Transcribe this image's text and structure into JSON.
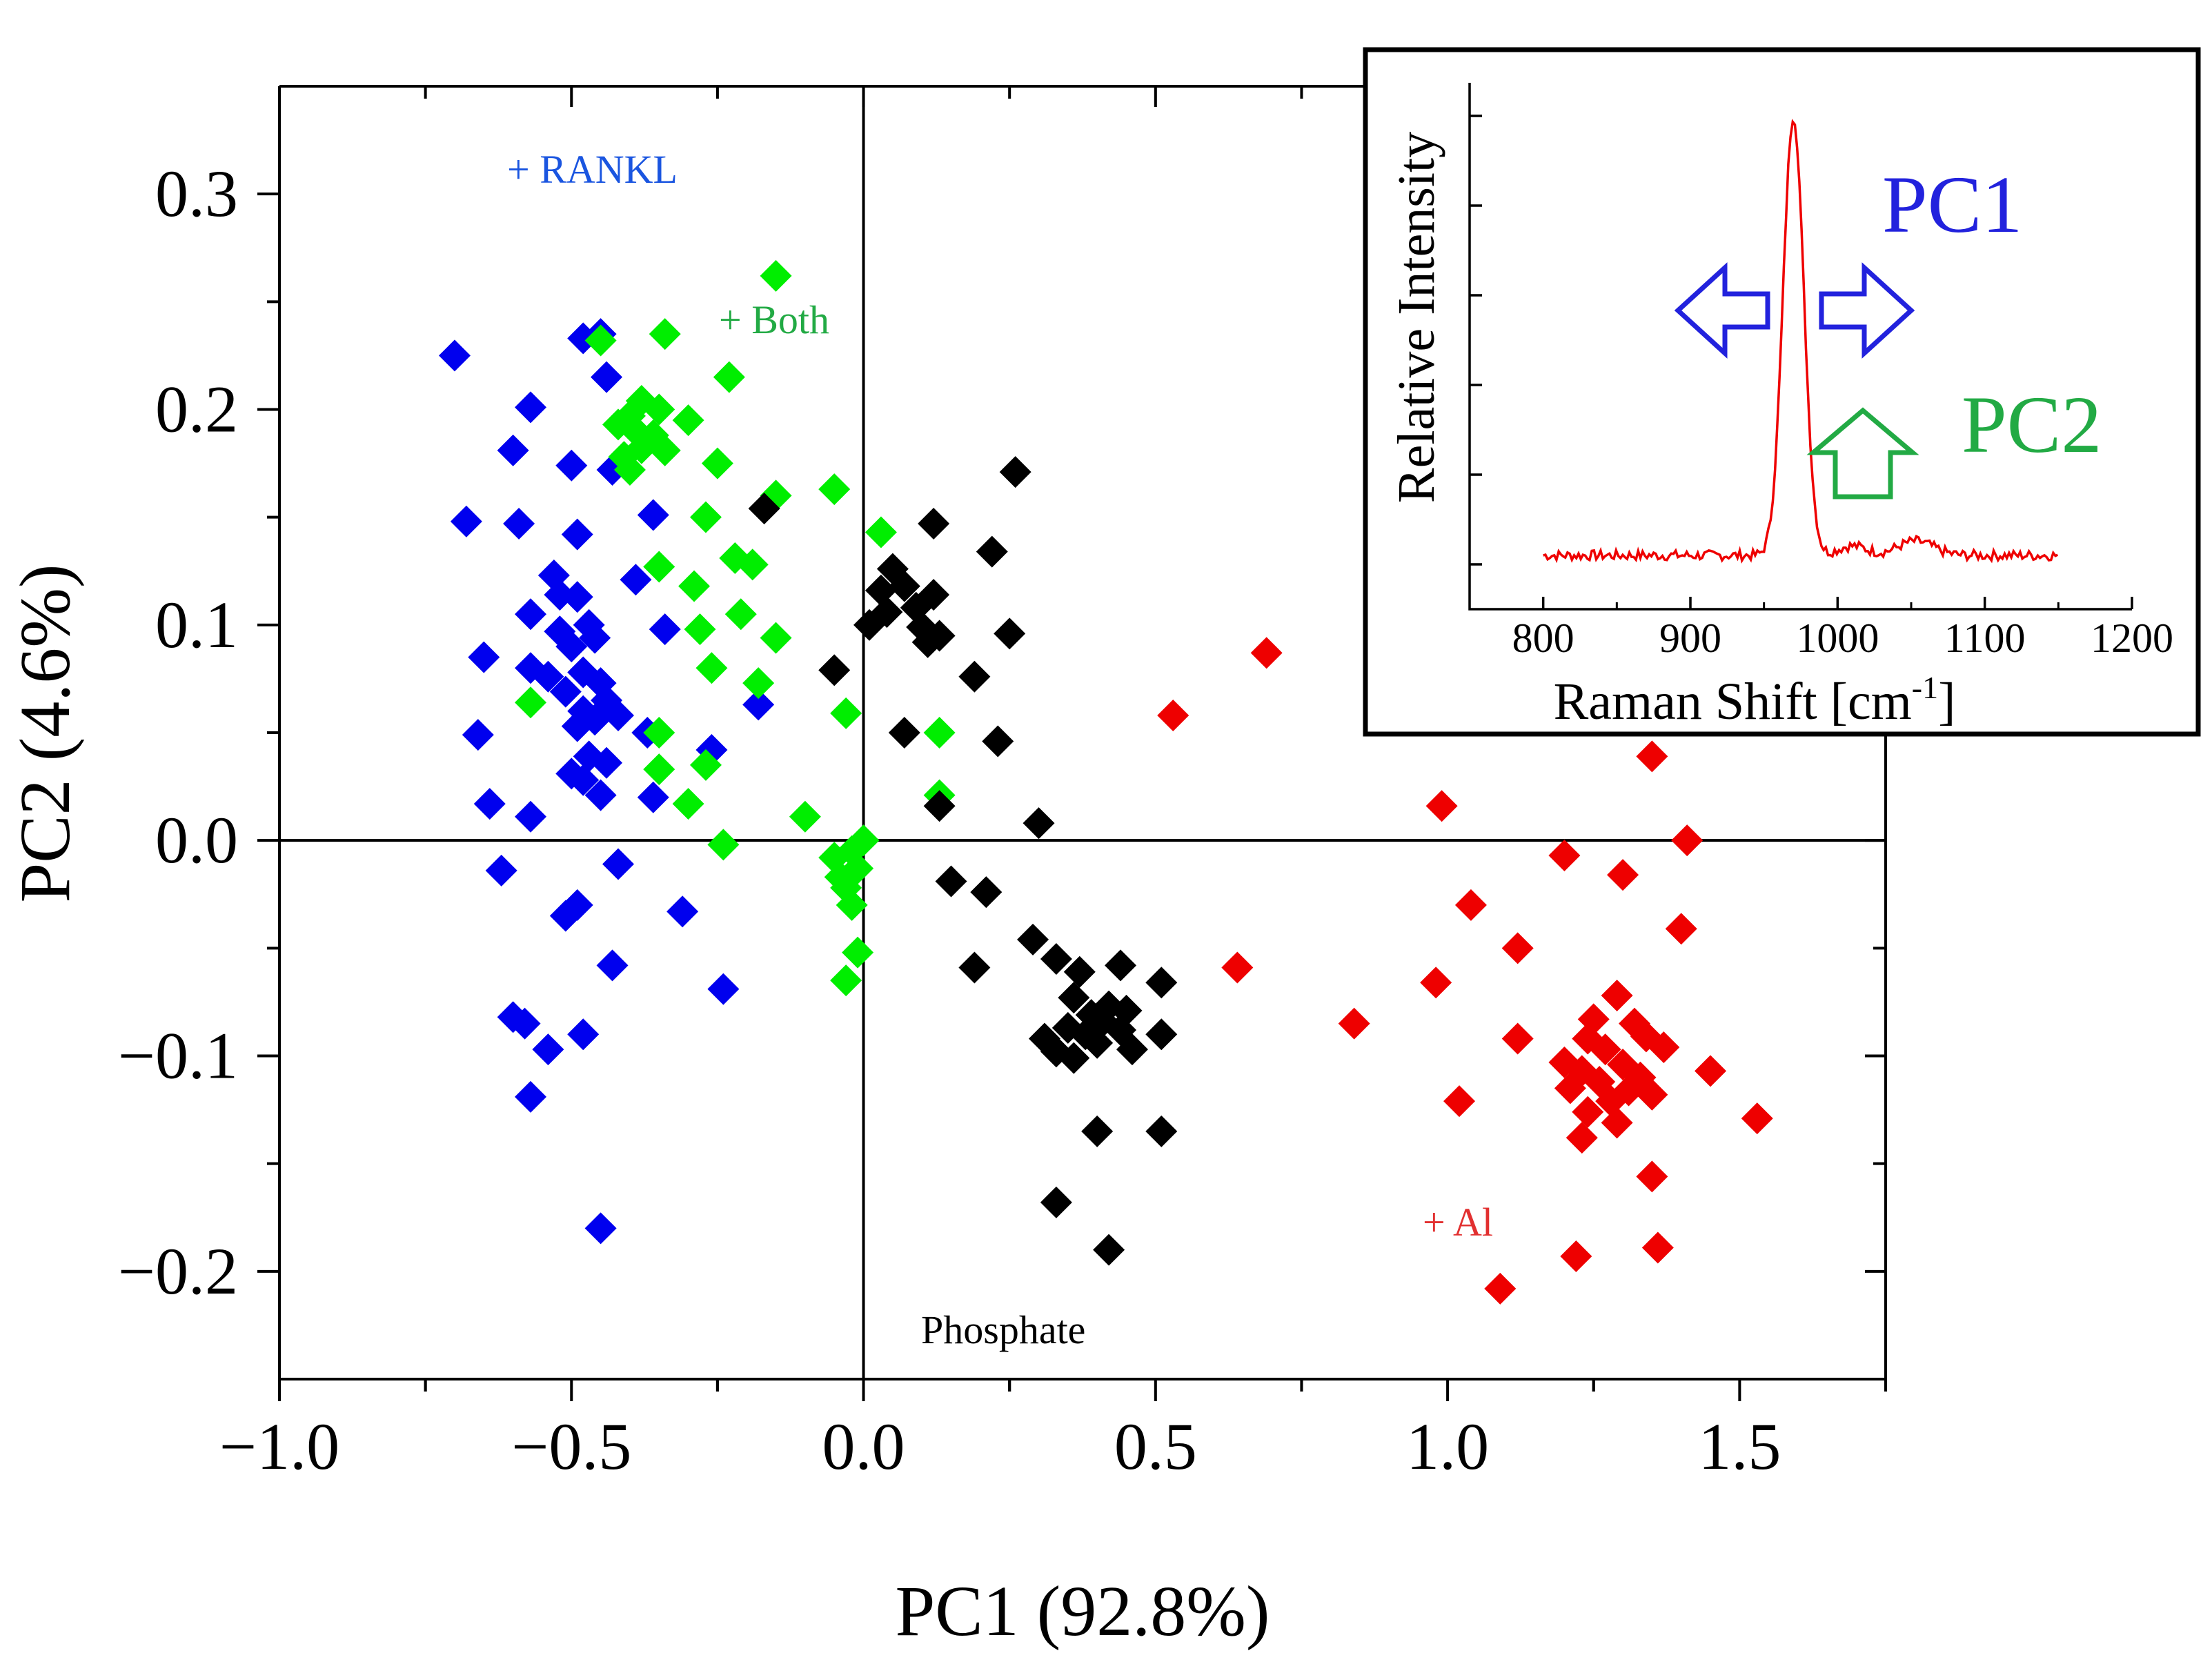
{
  "chart_data": {
    "type": "scatter",
    "xlabel": "PC1 (92.8%)",
    "ylabel": "PC2 (4.6%)",
    "xlim": [
      -1.0,
      1.75
    ],
    "ylim": [
      -0.25,
      0.35
    ],
    "x_ticks": [
      -1.0,
      -0.5,
      0.0,
      0.5,
      1.0,
      1.5
    ],
    "x_tick_labels": [
      "−1.0",
      "−0.5",
      "0.0",
      "0.5",
      "1.0",
      "1.5"
    ],
    "y_ticks": [
      -0.2,
      -0.1,
      0.0,
      0.1,
      0.2,
      0.3
    ],
    "y_tick_labels": [
      "−0.2",
      "−0.1",
      "0.0",
      "0.1",
      "0.2",
      "0.3"
    ],
    "marker": "diamond",
    "series": [
      {
        "name": "+ RANKL",
        "label": "+ RANKL",
        "color": "#0000ee",
        "label_color": "#1a55e0",
        "points": [
          [
            -0.7,
            0.225
          ],
          [
            -0.45,
            0.235
          ],
          [
            -0.48,
            0.233
          ],
          [
            -0.44,
            0.215
          ],
          [
            -0.57,
            0.201
          ],
          [
            -0.6,
            0.181
          ],
          [
            -0.5,
            0.174
          ],
          [
            -0.43,
            0.172
          ],
          [
            -0.68,
            0.148
          ],
          [
            -0.59,
            0.147
          ],
          [
            -0.49,
            0.142
          ],
          [
            -0.36,
            0.151
          ],
          [
            -0.53,
            0.123
          ],
          [
            -0.52,
            0.114
          ],
          [
            -0.49,
            0.113
          ],
          [
            -0.57,
            0.105
          ],
          [
            -0.47,
            0.1
          ],
          [
            -0.34,
            0.098
          ],
          [
            -0.52,
            0.097
          ],
          [
            -0.46,
            0.094
          ],
          [
            -0.5,
            0.09
          ],
          [
            -0.65,
            0.085
          ],
          [
            -0.57,
            0.08
          ],
          [
            -0.48,
            0.078
          ],
          [
            -0.54,
            0.076
          ],
          [
            -0.45,
            0.073
          ],
          [
            -0.51,
            0.069
          ],
          [
            -0.44,
            0.065
          ],
          [
            -0.48,
            0.06
          ],
          [
            -0.42,
            0.058
          ],
          [
            -0.46,
            0.056
          ],
          [
            -0.49,
            0.053
          ],
          [
            -0.66,
            0.049
          ],
          [
            -0.37,
            0.05
          ],
          [
            -0.26,
            0.042
          ],
          [
            -0.47,
            0.039
          ],
          [
            -0.44,
            0.036
          ],
          [
            -0.5,
            0.031
          ],
          [
            -0.48,
            0.028
          ],
          [
            -0.45,
            0.021
          ],
          [
            -0.36,
            0.02
          ],
          [
            -0.64,
            0.017
          ],
          [
            -0.57,
            0.011
          ],
          [
            -0.62,
            -0.014
          ],
          [
            -0.42,
            -0.011
          ],
          [
            -0.49,
            -0.03
          ],
          [
            -0.51,
            -0.035
          ],
          [
            -0.31,
            -0.033
          ],
          [
            -0.43,
            -0.058
          ],
          [
            -0.24,
            -0.069
          ],
          [
            -0.6,
            -0.082
          ],
          [
            -0.58,
            -0.085
          ],
          [
            -0.48,
            -0.09
          ],
          [
            -0.54,
            -0.097
          ],
          [
            -0.57,
            -0.119
          ],
          [
            -0.45,
            -0.18
          ],
          [
            -0.18,
            0.063
          ],
          [
            -0.39,
            0.121
          ]
        ]
      },
      {
        "name": "+ Both",
        "label": "+ Both",
        "color": "#00ee00",
        "label_color": "#22aa44",
        "points": [
          [
            -0.15,
            0.262
          ],
          [
            -0.45,
            0.232
          ],
          [
            -0.34,
            0.235
          ],
          [
            -0.23,
            0.215
          ],
          [
            -0.38,
            0.204
          ],
          [
            -0.35,
            0.2
          ],
          [
            -0.4,
            0.197
          ],
          [
            -0.42,
            0.193
          ],
          [
            -0.39,
            0.19
          ],
          [
            -0.36,
            0.188
          ],
          [
            -0.3,
            0.195
          ],
          [
            -0.38,
            0.182
          ],
          [
            -0.41,
            0.178
          ],
          [
            -0.34,
            0.181
          ],
          [
            -0.4,
            0.172
          ],
          [
            -0.25,
            0.175
          ],
          [
            -0.15,
            0.16
          ],
          [
            -0.05,
            0.163
          ],
          [
            -0.27,
            0.15
          ],
          [
            -0.22,
            0.131
          ],
          [
            -0.19,
            0.128
          ],
          [
            -0.35,
            0.127
          ],
          [
            0.03,
            0.143
          ],
          [
            -0.29,
            0.118
          ],
          [
            -0.21,
            0.105
          ],
          [
            -0.28,
            0.098
          ],
          [
            -0.15,
            0.094
          ],
          [
            -0.26,
            0.08
          ],
          [
            -0.18,
            0.073
          ],
          [
            -0.57,
            0.064
          ],
          [
            -0.03,
            0.059
          ],
          [
            0.13,
            0.05
          ],
          [
            -0.35,
            0.05
          ],
          [
            -0.27,
            0.035
          ],
          [
            -0.35,
            0.033
          ],
          [
            0.13,
            0.021
          ],
          [
            -0.3,
            0.017
          ],
          [
            -0.1,
            0.011
          ],
          [
            0.0,
            0.0
          ],
          [
            -0.24,
            -0.002
          ],
          [
            -0.02,
            -0.005
          ],
          [
            -0.05,
            -0.008
          ],
          [
            -0.01,
            -0.013
          ],
          [
            -0.04,
            -0.017
          ],
          [
            -0.03,
            -0.022
          ],
          [
            -0.02,
            -0.03
          ],
          [
            -0.01,
            -0.052
          ],
          [
            -0.03,
            -0.065
          ]
        ]
      },
      {
        "name": "Phosphate",
        "label": "Phosphate",
        "color": "#000000",
        "label_color": "#000000",
        "points": [
          [
            0.26,
            0.171
          ],
          [
            -0.17,
            0.154
          ],
          [
            0.12,
            0.147
          ],
          [
            0.22,
            0.134
          ],
          [
            0.05,
            0.126
          ],
          [
            0.07,
            0.118
          ],
          [
            0.03,
            0.116
          ],
          [
            0.12,
            0.114
          ],
          [
            0.09,
            0.108
          ],
          [
            0.04,
            0.106
          ],
          [
            0.01,
            0.1
          ],
          [
            0.1,
            0.099
          ],
          [
            0.13,
            0.095
          ],
          [
            0.25,
            0.096
          ],
          [
            0.11,
            0.092
          ],
          [
            -0.05,
            0.079
          ],
          [
            0.19,
            0.076
          ],
          [
            0.07,
            0.05
          ],
          [
            0.23,
            0.046
          ],
          [
            0.13,
            0.016
          ],
          [
            0.3,
            0.008
          ],
          [
            0.15,
            -0.019
          ],
          [
            0.21,
            -0.024
          ],
          [
            0.29,
            -0.046
          ],
          [
            0.33,
            -0.055
          ],
          [
            0.19,
            -0.059
          ],
          [
            0.37,
            -0.061
          ],
          [
            0.44,
            -0.058
          ],
          [
            0.51,
            -0.066
          ],
          [
            0.36,
            -0.073
          ],
          [
            0.42,
            -0.077
          ],
          [
            0.39,
            -0.081
          ],
          [
            0.45,
            -0.079
          ],
          [
            0.41,
            -0.084
          ],
          [
            0.35,
            -0.087
          ],
          [
            0.44,
            -0.088
          ],
          [
            0.31,
            -0.092
          ],
          [
            0.38,
            -0.09
          ],
          [
            0.51,
            -0.09
          ],
          [
            0.4,
            -0.094
          ],
          [
            0.33,
            -0.098
          ],
          [
            0.46,
            -0.097
          ],
          [
            0.36,
            -0.101
          ],
          [
            0.4,
            -0.135
          ],
          [
            0.51,
            -0.135
          ],
          [
            0.33,
            -0.168
          ],
          [
            0.42,
            -0.19
          ]
        ]
      },
      {
        "name": "+ Al",
        "label": "+ Al",
        "color": "#ee0000",
        "label_color": "#e23030",
        "points": [
          [
            0.69,
            0.087
          ],
          [
            0.53,
            0.058
          ],
          [
            1.35,
            0.039
          ],
          [
            0.99,
            0.016
          ],
          [
            1.41,
            0.0
          ],
          [
            1.2,
            -0.007
          ],
          [
            1.3,
            -0.016
          ],
          [
            1.04,
            -0.03
          ],
          [
            1.4,
            -0.041
          ],
          [
            1.12,
            -0.05
          ],
          [
            0.64,
            -0.059
          ],
          [
            0.98,
            -0.066
          ],
          [
            1.29,
            -0.072
          ],
          [
            0.84,
            -0.085
          ],
          [
            1.25,
            -0.083
          ],
          [
            1.32,
            -0.085
          ],
          [
            1.34,
            -0.091
          ],
          [
            1.24,
            -0.092
          ],
          [
            1.12,
            -0.092
          ],
          [
            1.27,
            -0.097
          ],
          [
            1.37,
            -0.096
          ],
          [
            1.2,
            -0.103
          ],
          [
            1.3,
            -0.104
          ],
          [
            1.23,
            -0.107
          ],
          [
            1.33,
            -0.11
          ],
          [
            1.45,
            -0.107
          ],
          [
            1.26,
            -0.112
          ],
          [
            1.21,
            -0.115
          ],
          [
            1.31,
            -0.116
          ],
          [
            1.35,
            -0.118
          ],
          [
            1.28,
            -0.121
          ],
          [
            1.02,
            -0.121
          ],
          [
            1.24,
            -0.126
          ],
          [
            1.29,
            -0.131
          ],
          [
            1.23,
            -0.138
          ],
          [
            1.53,
            -0.129
          ],
          [
            1.35,
            -0.156
          ],
          [
            1.36,
            -0.189
          ],
          [
            1.22,
            -0.193
          ],
          [
            1.09,
            -0.208
          ]
        ]
      }
    ],
    "inset": {
      "type": "line",
      "xlabel": "Raman Shift [cm",
      "xlabel_superscript": "-1",
      "xlabel_suffix": "]",
      "ylabel": "Relative Intensity",
      "xlim": [
        750,
        1200
      ],
      "x_ticks": [
        800,
        900,
        1000,
        1100,
        1200
      ],
      "x_tick_labels": [
        "800",
        "900",
        "1000",
        "1100",
        "1200"
      ],
      "y_tick_count": 6,
      "line_color": "#ee0000",
      "spectrum": {
        "x_start": 800,
        "x_end": 1150,
        "baseline": 0.07,
        "peak_center": 970,
        "peak_height": 1.0,
        "peak_width": 7,
        "shoulder_center": 1053,
        "shoulder_height": 0.03,
        "shoulder_width": 12
      },
      "annotations": {
        "pc1_label": "PC1",
        "pc1_color": "#2222dd",
        "pc2_label": "PC2",
        "pc2_color": "#22aa44"
      }
    }
  }
}
